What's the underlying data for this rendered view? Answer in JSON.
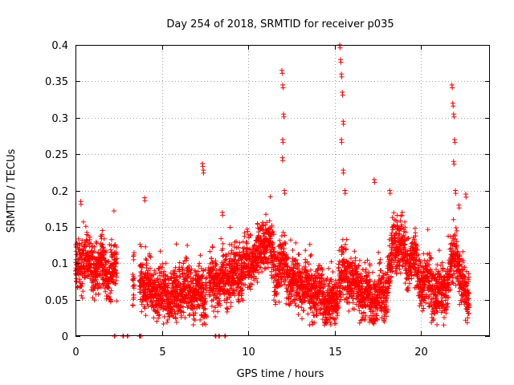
{
  "chart_data": {
    "type": "scatter",
    "title": "Day 254 of 2018, SRMTID for receiver p035",
    "xlabel": "GPS time / hours",
    "ylabel": "SRMTID / TECUs",
    "xlim": [
      0,
      24
    ],
    "ylim": [
      0,
      0.4
    ],
    "xticks": [
      0,
      5,
      10,
      15,
      20
    ],
    "xtick_labels": [
      "0",
      "5",
      "10",
      "15",
      "20"
    ],
    "yticks": [
      0,
      0.05,
      0.1,
      0.15,
      0.2,
      0.25,
      0.3,
      0.35,
      0.4
    ],
    "ytick_labels": [
      "0",
      "0.05",
      "0.1",
      "0.15",
      "0.2",
      "0.25",
      "0.3",
      "0.35",
      "0.4"
    ],
    "grid": true,
    "marker": "+",
    "series_color": "#ff0000",
    "series": [
      {
        "name": "SRMTID",
        "seed": 254,
        "base_profile": [
          [
            0.0,
            0.085
          ],
          [
            0.5,
            0.11
          ],
          [
            1.0,
            0.09
          ],
          [
            1.5,
            0.1
          ],
          [
            2.0,
            0.085
          ],
          [
            2.4,
            0.09
          ],
          [
            3.3,
            0.08
          ],
          [
            4.0,
            0.075
          ],
          [
            4.5,
            0.06
          ],
          [
            5.0,
            0.055
          ],
          [
            5.5,
            0.055
          ],
          [
            6.0,
            0.06
          ],
          [
            6.5,
            0.07
          ],
          [
            7.0,
            0.06
          ],
          [
            7.5,
            0.055
          ],
          [
            8.0,
            0.08
          ],
          [
            8.5,
            0.07
          ],
          [
            9.0,
            0.085
          ],
          [
            9.5,
            0.09
          ],
          [
            10.0,
            0.1
          ],
          [
            10.5,
            0.11
          ],
          [
            11.0,
            0.13
          ],
          [
            11.3,
            0.12
          ],
          [
            11.6,
            0.085
          ],
          [
            12.0,
            0.1
          ],
          [
            12.5,
            0.075
          ],
          [
            13.0,
            0.075
          ],
          [
            13.5,
            0.065
          ],
          [
            14.0,
            0.06
          ],
          [
            14.5,
            0.05
          ],
          [
            15.0,
            0.045
          ],
          [
            15.5,
            0.09
          ],
          [
            16.0,
            0.08
          ],
          [
            16.5,
            0.06
          ],
          [
            17.0,
            0.055
          ],
          [
            17.5,
            0.05
          ],
          [
            18.0,
            0.055
          ],
          [
            18.4,
            0.13
          ],
          [
            18.8,
            0.13
          ],
          [
            19.2,
            0.1
          ],
          [
            19.6,
            0.11
          ],
          [
            20.0,
            0.07
          ],
          [
            20.5,
            0.075
          ],
          [
            21.0,
            0.05
          ],
          [
            21.5,
            0.07
          ],
          [
            22.0,
            0.12
          ],
          [
            22.5,
            0.06
          ],
          [
            22.8,
            0.055
          ]
        ],
        "gaps": [
          [
            2.4,
            3.3
          ],
          [
            3.4,
            3.7
          ],
          [
            7.6,
            7.7
          ]
        ],
        "spikes": [
          [
            0.3,
            0.185
          ],
          [
            4.0,
            0.19
          ],
          [
            7.35,
            0.237
          ],
          [
            7.4,
            0.228
          ],
          [
            8.5,
            0.17
          ],
          [
            11.95,
            0.365
          ],
          [
            12.0,
            0.345
          ],
          [
            12.05,
            0.305
          ],
          [
            12.0,
            0.27
          ],
          [
            11.98,
            0.245
          ],
          [
            12.1,
            0.2
          ],
          [
            15.3,
            0.4
          ],
          [
            15.35,
            0.38
          ],
          [
            15.4,
            0.36
          ],
          [
            15.45,
            0.335
          ],
          [
            15.5,
            0.295
          ],
          [
            15.4,
            0.27
          ],
          [
            15.5,
            0.228
          ],
          [
            15.6,
            0.2
          ],
          [
            17.3,
            0.215
          ],
          [
            18.2,
            0.2
          ],
          [
            21.8,
            0.345
          ],
          [
            21.85,
            0.32
          ],
          [
            21.9,
            0.305
          ],
          [
            21.95,
            0.27
          ],
          [
            21.9,
            0.24
          ],
          [
            22.0,
            0.2
          ],
          [
            22.6,
            0.195
          ],
          [
            22.2,
            0.18
          ]
        ],
        "zero_points": [
          2.25,
          2.75,
          3.0,
          3.7,
          3.75,
          8.1,
          8.3,
          8.65
        ]
      }
    ]
  }
}
